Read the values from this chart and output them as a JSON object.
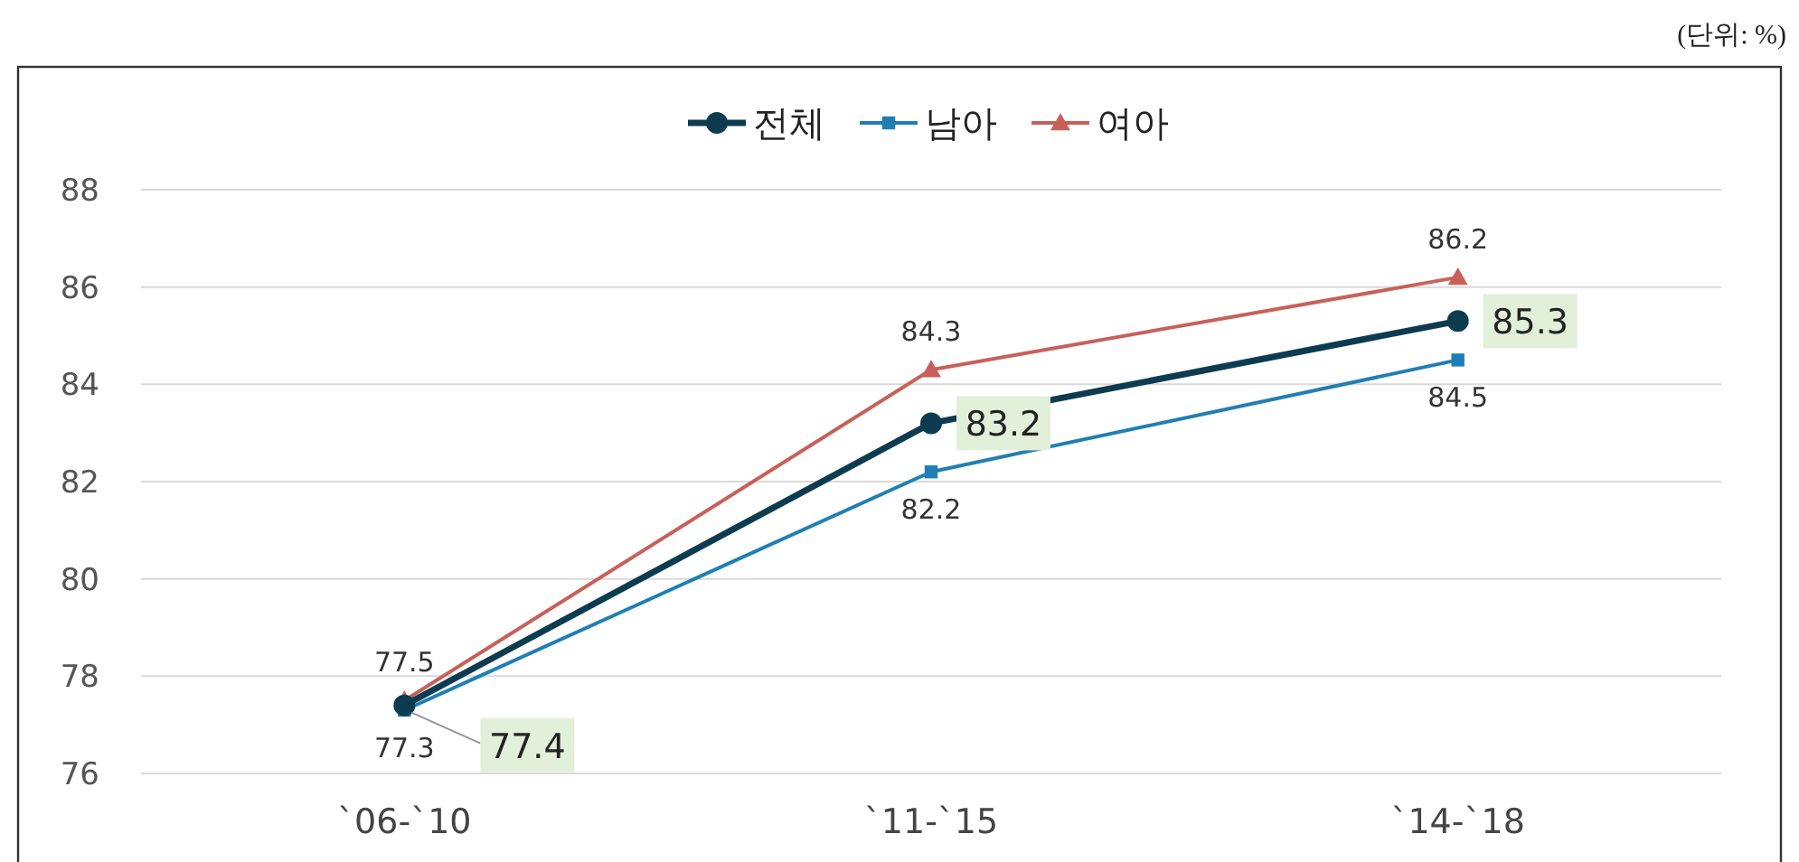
{
  "chart_data": {
    "type": "line",
    "categories": [
      "`06-`10",
      "`11-`15",
      "`14-`18"
    ],
    "series": [
      {
        "name": "전체",
        "color": "#0d3b4f",
        "values": [
          77.4,
          83.2,
          85.3
        ],
        "marker": "circle"
      },
      {
        "name": "남아",
        "color": "#1f7fb5",
        "values": [
          77.3,
          82.2,
          84.5
        ],
        "marker": "square"
      },
      {
        "name": "여아",
        "color": "#c8605a",
        "values": [
          77.5,
          84.3,
          86.2
        ],
        "marker": "triangle"
      }
    ],
    "ylim": [
      76,
      88
    ],
    "yticks": [
      76,
      78,
      80,
      82,
      84,
      86,
      88
    ],
    "grid": "y",
    "legend": "top",
    "data_labels": true,
    "annotations": [
      "(단위: %)"
    ]
  }
}
